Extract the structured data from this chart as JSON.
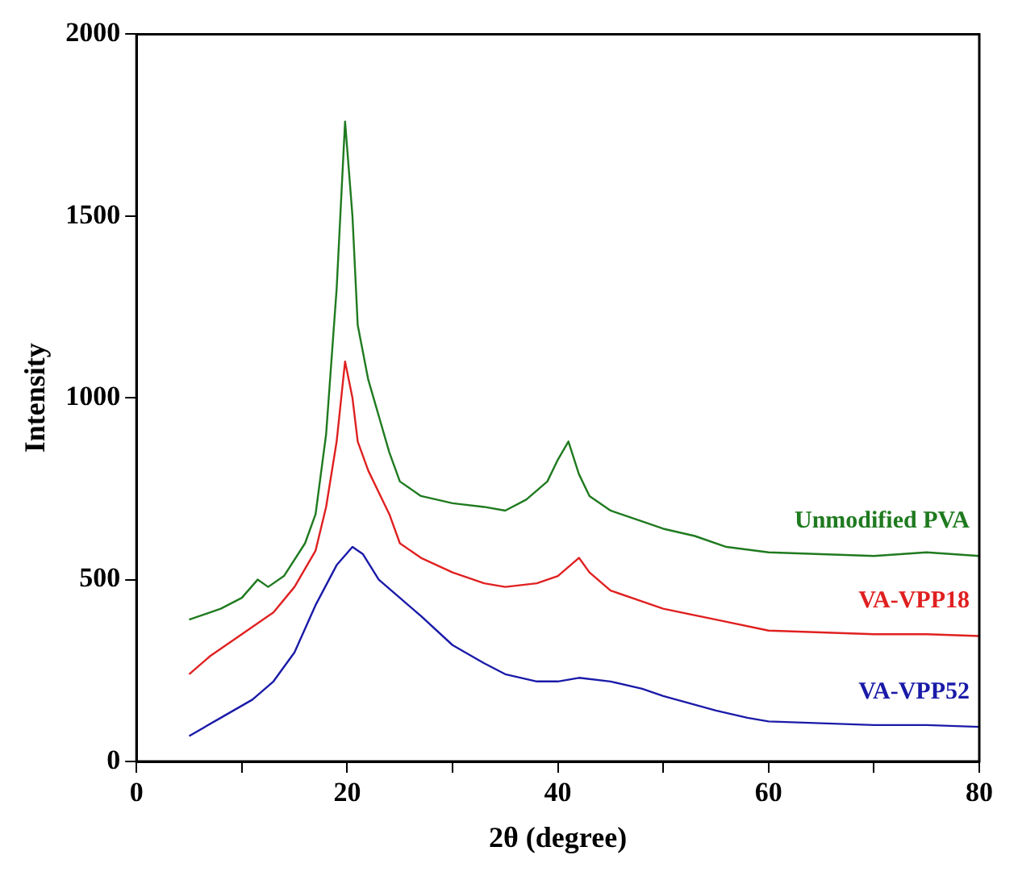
{
  "chart_data": {
    "type": "line",
    "xlabel": "2θ (degree)",
    "ylabel": "Intensity",
    "xlim": [
      0,
      80
    ],
    "ylim": [
      0,
      2000
    ],
    "xticks": [
      0,
      {
        "value": 10,
        "label": null
      },
      20,
      {
        "value": 30,
        "label": null
      },
      40,
      {
        "value": 50,
        "label": null
      },
      60,
      {
        "value": 70,
        "label": null
      },
      80
    ],
    "yticks": [
      0,
      500,
      1000,
      1500,
      2000
    ],
    "grid": false,
    "legend": false,
    "marker": "none",
    "line_style": "solid",
    "series": [
      {
        "name": "Unmodified PVA",
        "color": "#1f7a1f",
        "x": [
          5,
          8,
          10,
          11.5,
          12.5,
          14,
          16,
          17,
          18,
          19,
          19.8,
          20.5,
          21,
          22,
          22.5,
          23,
          24,
          25,
          27,
          30,
          33,
          35,
          37,
          39,
          40,
          41,
          42,
          43,
          45,
          48,
          50,
          53,
          56,
          60,
          65,
          70,
          75,
          80
        ],
        "values": [
          390,
          420,
          450,
          500,
          480,
          510,
          600,
          680,
          900,
          1300,
          1760,
          1500,
          1200,
          1050,
          1000,
          950,
          850,
          770,
          730,
          710,
          700,
          690,
          720,
          770,
          830,
          880,
          790,
          730,
          690,
          660,
          640,
          620,
          590,
          575,
          570,
          565,
          575,
          565
        ]
      },
      {
        "name": "VA-VPP18",
        "color": "#e02020",
        "x": [
          5,
          7,
          10,
          13,
          15,
          17,
          18,
          19,
          19.8,
          20.5,
          21,
          22,
          23,
          24,
          25,
          27,
          30,
          33,
          35,
          38,
          40,
          42,
          43,
          45,
          48,
          50,
          55,
          60,
          65,
          70,
          75,
          80
        ],
        "values": [
          240,
          290,
          350,
          410,
          480,
          580,
          700,
          880,
          1100,
          1000,
          880,
          800,
          740,
          680,
          600,
          560,
          520,
          490,
          480,
          490,
          510,
          560,
          520,
          470,
          440,
          420,
          390,
          360,
          355,
          350,
          350,
          345
        ]
      },
      {
        "name": "VA-VPP52",
        "color": "#1a1aa8",
        "x": [
          5,
          8,
          11,
          13,
          15,
          17,
          19,
          20.5,
          21.5,
          23,
          25,
          27,
          30,
          33,
          35,
          38,
          40,
          42,
          45,
          48,
          50,
          55,
          58,
          60,
          65,
          70,
          75,
          80
        ],
        "values": [
          70,
          120,
          170,
          220,
          300,
          430,
          540,
          590,
          570,
          500,
          450,
          400,
          320,
          270,
          240,
          220,
          220,
          230,
          220,
          200,
          180,
          140,
          120,
          110,
          105,
          100,
          100,
          95
        ]
      }
    ]
  }
}
